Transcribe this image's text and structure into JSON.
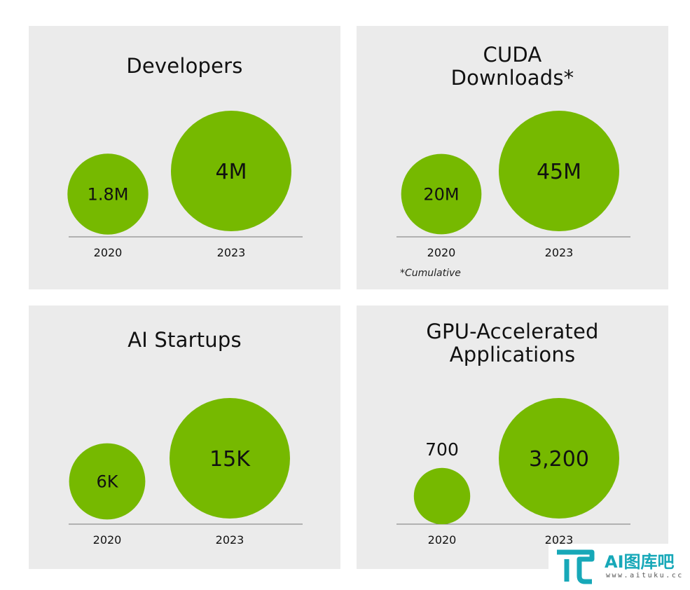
{
  "colors": {
    "bubble": "#76b900",
    "panel_bg": "#ebebeb",
    "axis": "#777777",
    "text": "#111111"
  },
  "chart_data": [
    {
      "type": "bubble",
      "title": "Developers",
      "categories": [
        "2020",
        "2023"
      ],
      "values": [
        1.8,
        4
      ],
      "value_labels": [
        "1.8M",
        "4M"
      ],
      "unit": "M"
    },
    {
      "type": "bubble",
      "title": "CUDA Downloads*",
      "title_lines": [
        "CUDA",
        "Downloads*"
      ],
      "categories": [
        "2020",
        "2023"
      ],
      "values": [
        20,
        45
      ],
      "value_labels": [
        "20M",
        "45M"
      ],
      "unit": "M",
      "footnote": "*Cumulative"
    },
    {
      "type": "bubble",
      "title": "AI Startups",
      "categories": [
        "2020",
        "2023"
      ],
      "values": [
        6,
        15
      ],
      "value_labels": [
        "6K",
        "15K"
      ],
      "unit": "K"
    },
    {
      "type": "bubble",
      "title": "GPU-Accelerated Applications",
      "title_lines": [
        "GPU-Accelerated",
        "Applications"
      ],
      "categories": [
        "2020",
        "2023"
      ],
      "values": [
        700,
        3200
      ],
      "value_labels": [
        "700",
        "3,200"
      ]
    }
  ],
  "watermark": {
    "text": "AI图库吧",
    "url": "www.aituku.cc"
  }
}
